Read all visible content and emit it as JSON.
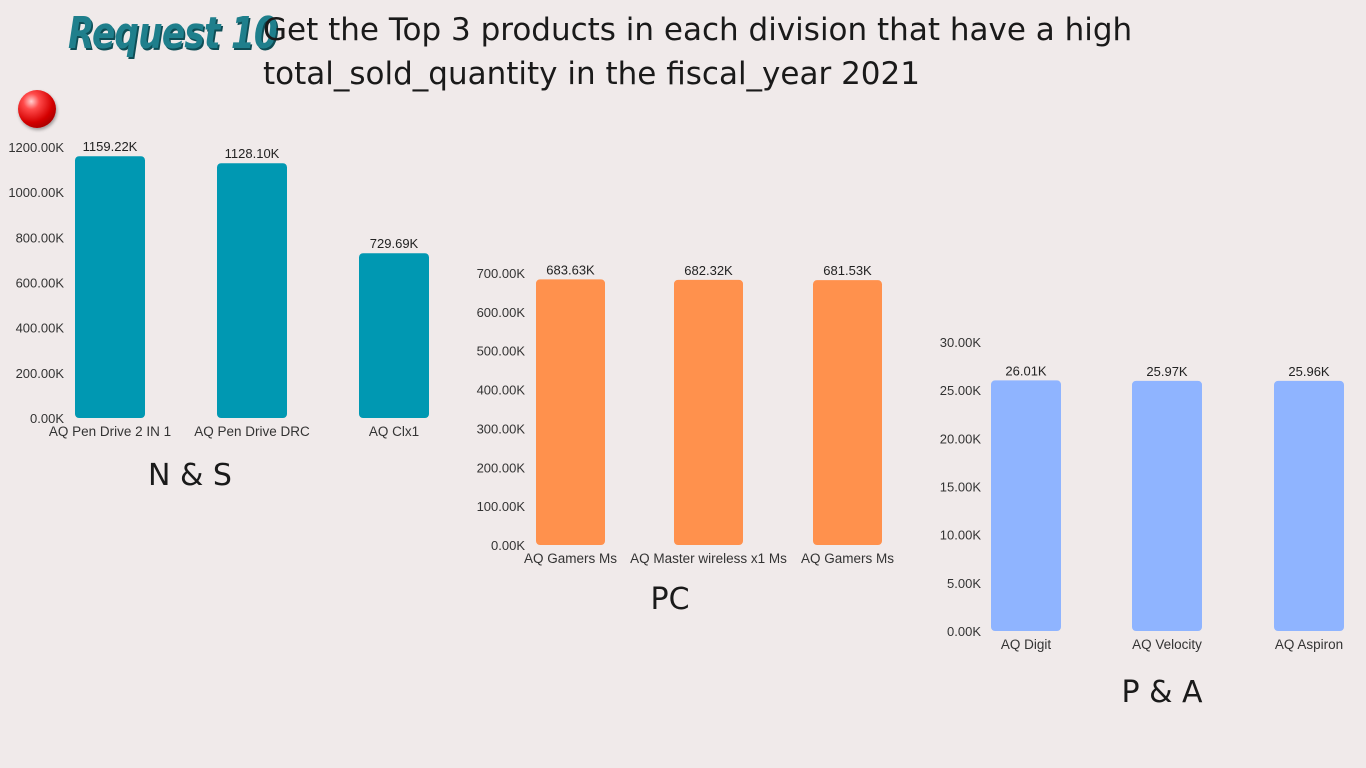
{
  "header": {
    "request_label": "Request 10",
    "question": "Get the Top 3 products in each division that have a high total_sold_quantity in the fiscal_year 2021"
  },
  "chart_data": [
    {
      "type": "bar",
      "division": "N & S",
      "categories": [
        "AQ Pen Drive 2 IN 1",
        "AQ Pen Drive DRC",
        "AQ Clx1"
      ],
      "values": [
        1159.22,
        1128.1,
        729.69
      ],
      "data_labels": [
        "1159.22K",
        "1128.10K",
        "729.69K"
      ],
      "yticks": [
        "0.00K",
        "200.00K",
        "400.00K",
        "600.00K",
        "800.00K",
        "1000.00K",
        "1200.00K"
      ],
      "ylim": [
        0,
        1200
      ],
      "color": "#0098b2",
      "grid": false
    },
    {
      "type": "bar",
      "division": "PC",
      "categories": [
        "AQ Gamers Ms",
        "AQ Master wireless x1 Ms",
        "AQ Gamers Ms"
      ],
      "values": [
        683.63,
        682.32,
        681.53
      ],
      "data_labels": [
        "683.63K",
        "682.32K",
        "681.53K"
      ],
      "yticks": [
        "0.00K",
        "100.00K",
        "200.00K",
        "300.00K",
        "400.00K",
        "500.00K",
        "600.00K",
        "700.00K"
      ],
      "ylim": [
        0,
        700
      ],
      "color": "#ff914d",
      "grid": false
    },
    {
      "type": "bar",
      "division": "P & A",
      "categories": [
        "AQ Digit",
        "AQ Velocity",
        "AQ Aspiron"
      ],
      "values": [
        26.01,
        25.97,
        25.96
      ],
      "data_labels": [
        "26.01K",
        "25.97K",
        "25.96K"
      ],
      "yticks": [
        "0.00K",
        "5.00K",
        "10.00K",
        "15.00K",
        "20.00K",
        "25.00K",
        "30.00K"
      ],
      "ylim": [
        0,
        30
      ],
      "color": "#8fb4ff",
      "grid": false
    }
  ]
}
